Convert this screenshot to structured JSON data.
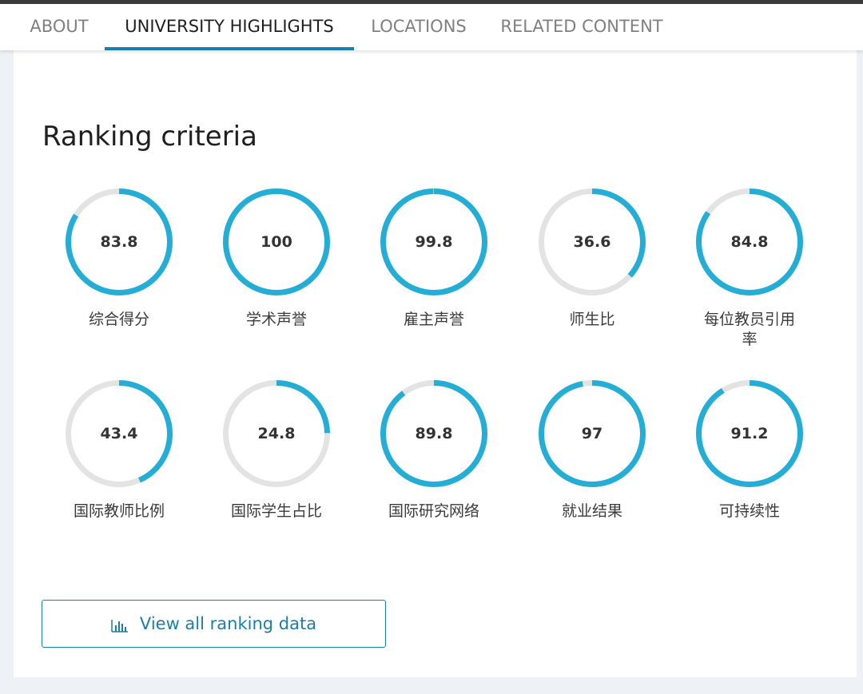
{
  "tabs": [
    {
      "label": "ABOUT",
      "active": false
    },
    {
      "label": "UNIVERSITY HIGHLIGHTS",
      "active": true
    },
    {
      "label": "LOCATIONS",
      "active": false
    },
    {
      "label": "RELATED CONTENT",
      "active": false
    }
  ],
  "section_title": "Ranking criteria",
  "metrics": [
    {
      "value": "83.8",
      "label": "综合得分",
      "percent": 83.8
    },
    {
      "value": "100",
      "label": "学术声誉",
      "percent": 100
    },
    {
      "value": "99.8",
      "label": "雇主声誉",
      "percent": 99.8
    },
    {
      "value": "36.6",
      "label": "师生比",
      "percent": 36.6
    },
    {
      "value": "84.8",
      "label": "每位教员引用率",
      "percent": 84.8
    },
    {
      "value": "43.4",
      "label": "国际教师比例",
      "percent": 43.4
    },
    {
      "value": "24.8",
      "label": "国际学生占比",
      "percent": 24.8
    },
    {
      "value": "89.8",
      "label": "国际研究网络",
      "percent": 89.8
    },
    {
      "value": "97",
      "label": "就业结果",
      "percent": 97
    },
    {
      "value": "91.2",
      "label": "可持续性",
      "percent": 91.2
    }
  ],
  "button": {
    "label": "View all ranking data",
    "icon": "bar-chart-icon"
  },
  "colors": {
    "accent": "#24aed6",
    "track": "#e3e3e3",
    "tab_underline": "#1a7fa8",
    "button": "#1a7fa8"
  }
}
